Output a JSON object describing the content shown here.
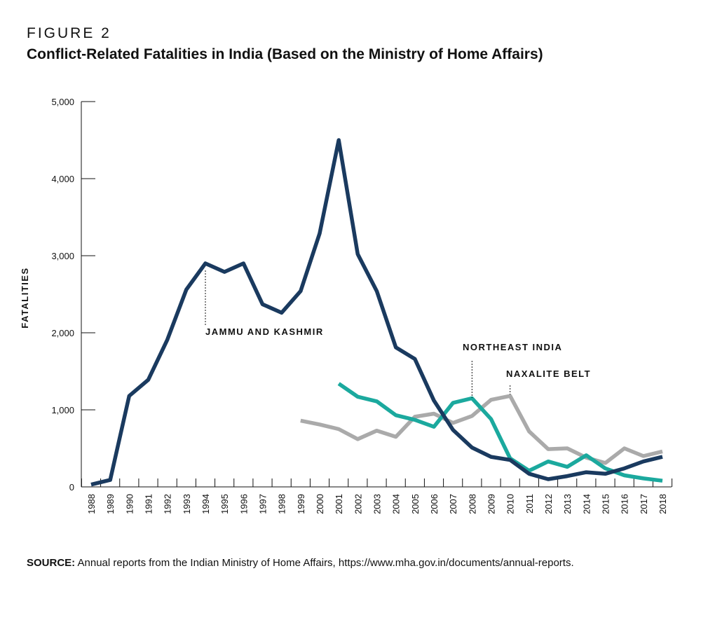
{
  "figure": {
    "label": "FIGURE 2",
    "title": "Conflict-Related Fatalities in India (Based on the Ministry of Home Affairs)"
  },
  "source": {
    "prefix": "SOURCE:",
    "text": " Annual reports from the Indian Ministry of Home Affairs, https://www.mha.gov.in/documents/annual-reports."
  },
  "chart_data": {
    "type": "line",
    "title": "Conflict-Related Fatalities in India (Based on the Ministry of Home Affairs)",
    "xlabel": "",
    "ylabel": "FATALITIES",
    "x": [
      1988,
      1989,
      1990,
      1991,
      1992,
      1993,
      1994,
      1995,
      1996,
      1997,
      1998,
      1999,
      2000,
      2001,
      2002,
      2003,
      2004,
      2005,
      2006,
      2007,
      2008,
      2009,
      2010,
      2011,
      2012,
      2013,
      2014,
      2015,
      2016,
      2017,
      2018
    ],
    "ylim": [
      0,
      5000
    ],
    "yticks": [
      0,
      1000,
      2000,
      3000,
      4000,
      5000
    ],
    "ytick_labels": [
      "0",
      "1,000",
      "2,000",
      "3,000",
      "4,000",
      "5,000"
    ],
    "grid": false,
    "legend": "none (series labeled by annotations)",
    "series": [
      {
        "name": "JAMMU AND KASHMIR",
        "color": "#1a3a5f",
        "values": [
          30,
          90,
          1180,
          1390,
          1910,
          2560,
          2900,
          2790,
          2900,
          2370,
          2260,
          2540,
          3290,
          4500,
          3020,
          2540,
          1810,
          1660,
          1120,
          740,
          510,
          390,
          350,
          170,
          100,
          140,
          190,
          170,
          240,
          330,
          390
        ]
      },
      {
        "name": "NORTHEAST INDIA",
        "color": "#1ba99e",
        "values": [
          null,
          null,
          null,
          null,
          null,
          null,
          null,
          null,
          null,
          null,
          null,
          null,
          null,
          1340,
          1170,
          1110,
          930,
          870,
          780,
          1090,
          1150,
          880,
          370,
          210,
          330,
          260,
          410,
          240,
          150,
          110,
          80
        ]
      },
      {
        "name": "NAXALITE BELT",
        "color": "#aaaaaa",
        "values": [
          null,
          null,
          null,
          null,
          null,
          null,
          null,
          null,
          null,
          null,
          null,
          860,
          810,
          750,
          620,
          730,
          650,
          910,
          950,
          830,
          920,
          1130,
          1180,
          720,
          490,
          500,
          380,
          310,
          500,
          400,
          460
        ]
      }
    ],
    "annotations": [
      {
        "text": "JAMMU AND KASHMIR",
        "series": "JAMMU AND KASHMIR",
        "x": 1994
      },
      {
        "text": "NORTHEAST INDIA",
        "series": "NORTHEAST INDIA",
        "x": 2008
      },
      {
        "text": "NAXALITE BELT",
        "series": "NAXALITE BELT",
        "x": 2010
      }
    ]
  }
}
